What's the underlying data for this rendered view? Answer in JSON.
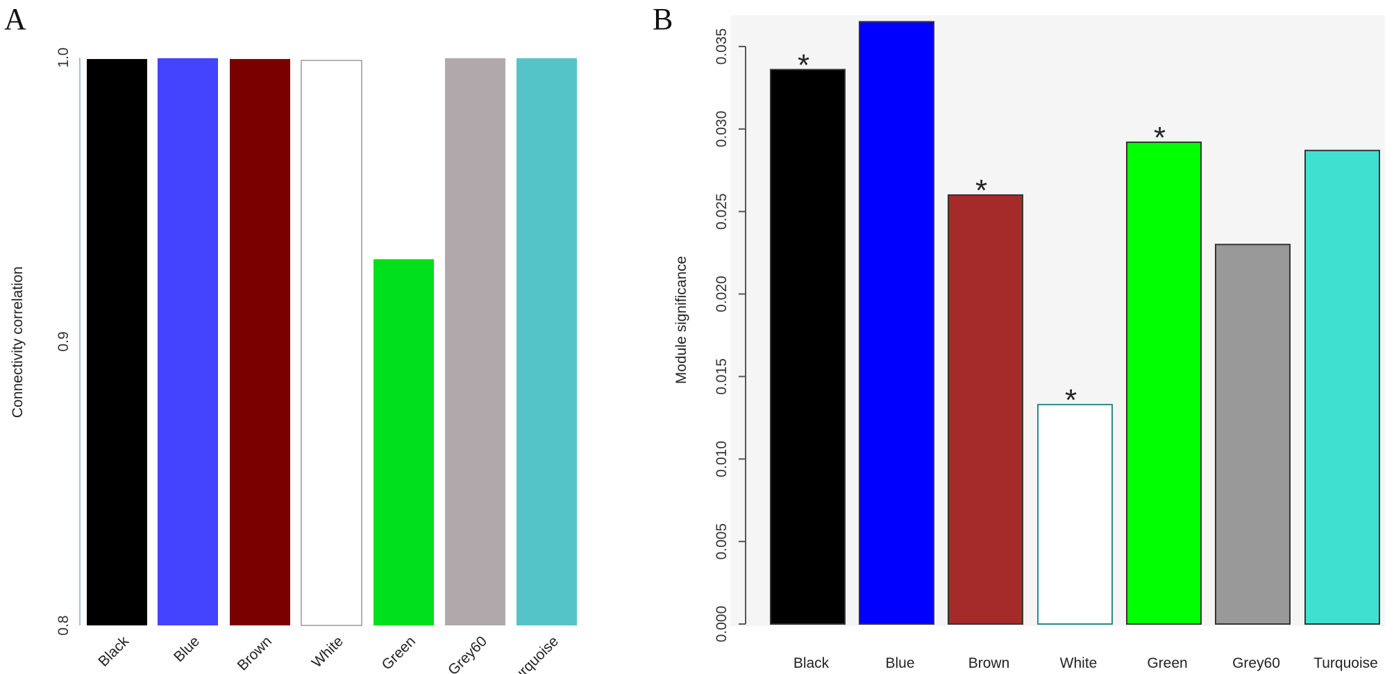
{
  "chart_data": [
    {
      "panel": "A",
      "type": "bar",
      "ylabel": "Connectivity correlation",
      "xlabel": "",
      "ylim": [
        0.8,
        1.0
      ],
      "yticks": [
        "0.8",
        "0.9",
        "1.0"
      ],
      "categories": [
        "Black",
        "Blue",
        "Brown",
        "White",
        "Green",
        "Grey60",
        "Turquoise"
      ],
      "values": [
        0.9995,
        0.9998,
        0.9995,
        0.999,
        0.929,
        0.9998,
        0.9998
      ],
      "colors": [
        "#000000",
        "#4444ff",
        "#7a0000",
        "#ffffff",
        "#00e01c",
        "#b0a8aa",
        "#55c4c8"
      ],
      "grid": false
    },
    {
      "panel": "B",
      "type": "bar",
      "ylabel": "Module significance",
      "xlabel": "",
      "ylim": [
        0,
        0.0365
      ],
      "yticks": [
        "0.000",
        "0.005",
        "0.010",
        "0.015",
        "0.020",
        "0.025",
        "0.030",
        "0.035"
      ],
      "categories": [
        "Black",
        "Blue",
        "Brown",
        "White",
        "Green",
        "Grey60",
        "Turquoise"
      ],
      "values": [
        0.0336,
        0.0365,
        0.026,
        0.0133,
        0.0292,
        0.023,
        0.0287
      ],
      "significant": [
        true,
        false,
        true,
        true,
        true,
        false,
        false
      ],
      "annotation": "*",
      "colors": [
        "#000000",
        "#0000ff",
        "#a52a2a",
        "#ffffff",
        "#00ff00",
        "#999999",
        "#40e0d0"
      ],
      "grid": false
    }
  ]
}
